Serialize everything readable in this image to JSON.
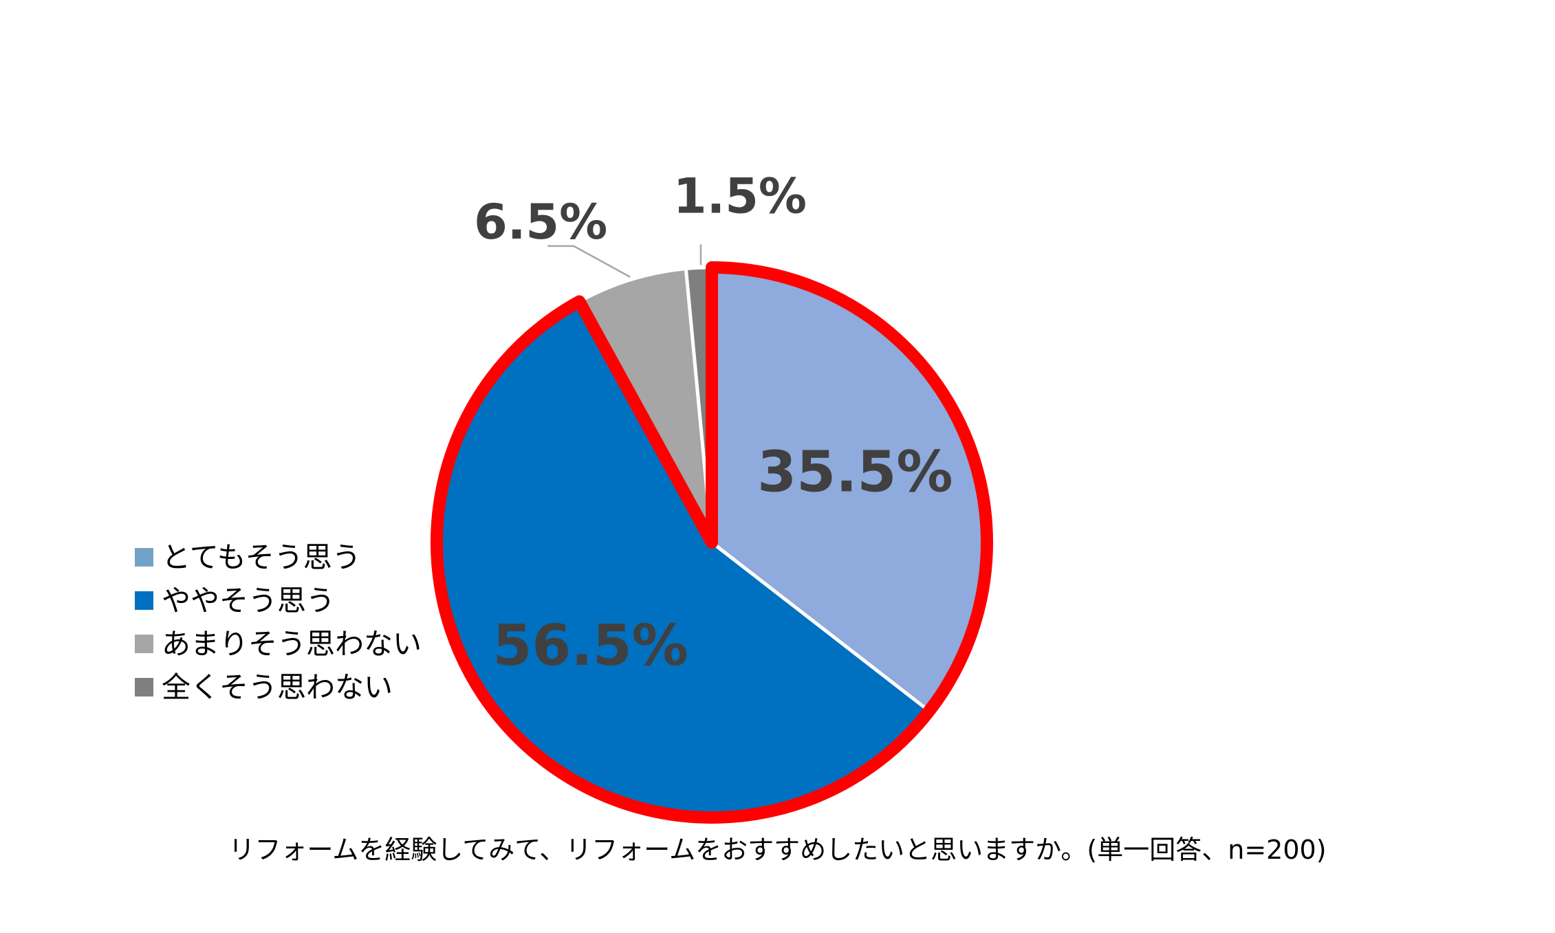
{
  "chart_data": {
    "type": "pie",
    "categories": [
      "とてもそう思う",
      "ややそう思う",
      "あまりそう思わない",
      "全くそう思わない"
    ],
    "values": [
      35.5,
      56.5,
      6.5,
      1.5
    ],
    "data_labels": [
      "35.5%",
      "56.5%",
      "6.5%",
      "1.5%"
    ],
    "colors": [
      "#8FAADC",
      "#0070C0",
      "#A6A6A6",
      "#7F7F7F"
    ],
    "legend_colors": [
      "#73A3C4",
      "#0070C0",
      "#A6A6A6",
      "#7F7F7F"
    ],
    "highlight_color": "#FF0000",
    "highlighted_categories": [
      "とてもそう思う",
      "ややそう思う"
    ],
    "legend_position": "left",
    "start_angle_deg": 0,
    "direction": "clockwise",
    "caption": "リフォームを経験してみて、リフォームをおすすめしたいと思いますか。(単一回答、n=200)"
  }
}
